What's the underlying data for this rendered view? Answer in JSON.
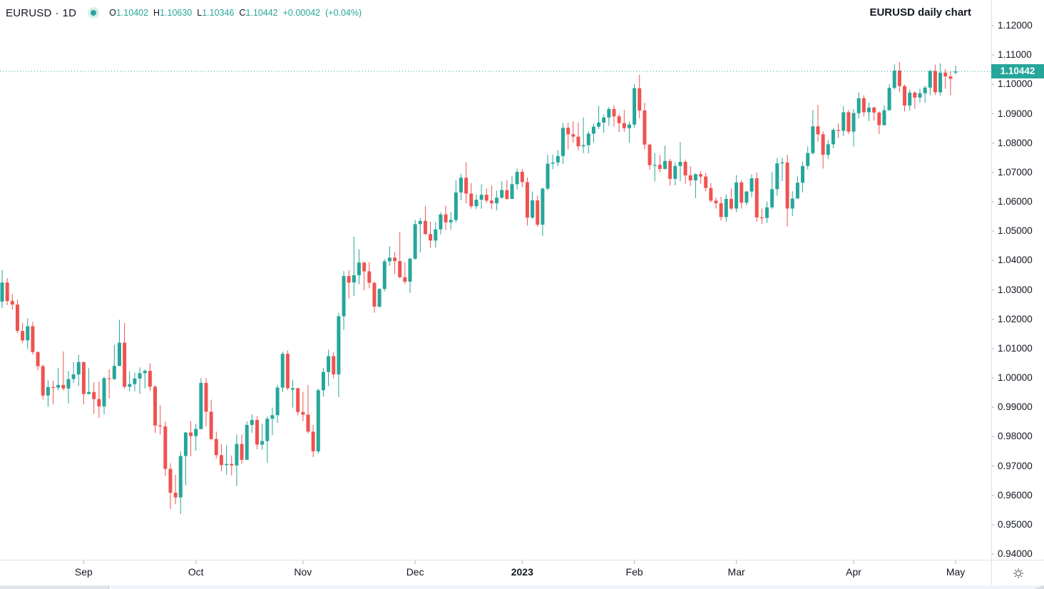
{
  "header": {
    "symbol": "EURUSD",
    "separator": "·",
    "interval": "1D",
    "ohlc": {
      "o_label": "O",
      "o": "1.10402",
      "h_label": "H",
      "h": "1.10630",
      "l_label": "L",
      "l": "1.10346",
      "c_label": "C",
      "c": "1.10442",
      "change": "+0.00042",
      "change_pct": "(+0.04%)"
    },
    "watermark_title": "EURUSD daily chart"
  },
  "colors": {
    "up": "#26a69a",
    "down": "#ef5350",
    "text": "#131722",
    "divider": "#e0e3eb",
    "tick": "#b2b5be",
    "badge_bg": "#26a69a",
    "badge_text": "#ffffff"
  },
  "price_axis": {
    "labels": [
      "1.12000",
      "1.11000",
      "1.10000",
      "1.09000",
      "1.08000",
      "1.07000",
      "1.06000",
      "1.05000",
      "1.04000",
      "1.03000",
      "1.02000",
      "1.01000",
      "1.00000",
      "0.99000",
      "0.98000",
      "0.97000",
      "0.96000",
      "0.95000",
      "0.94000"
    ],
    "last_price_label": "1.10442"
  },
  "time_axis": {
    "labels": [
      {
        "label": "Sep",
        "index": 16,
        "bold": false
      },
      {
        "label": "Oct",
        "index": 38,
        "bold": false
      },
      {
        "label": "Nov",
        "index": 59,
        "bold": false
      },
      {
        "label": "Dec",
        "index": 81,
        "bold": false
      },
      {
        "label": "2023",
        "index": 102,
        "bold": true
      },
      {
        "label": "Feb",
        "index": 124,
        "bold": false
      },
      {
        "label": "Mar",
        "index": 144,
        "bold": false
      },
      {
        "label": "Apr",
        "index": 167,
        "bold": false
      },
      {
        "label": "May",
        "index": 187,
        "bold": false
      }
    ]
  },
  "icons": {
    "settings": "gear-icon"
  },
  "chart_data": {
    "type": "candlestick",
    "title": "EURUSD daily chart",
    "symbol": "EURUSD",
    "interval": "1D",
    "legend_position": "top-left",
    "grid": false,
    "y_axis": {
      "min": 0.94,
      "max": 1.12,
      "step": 0.01,
      "side": "right"
    },
    "x_axis": {
      "labels_from": "time_axis.labels"
    },
    "last_price": 1.10442,
    "last_candle_ohlc": {
      "open": 1.10402,
      "high": 1.1063,
      "low": 1.10346,
      "close": 1.10442,
      "change": 0.00042,
      "change_pct": 0.04
    },
    "candles": [
      [
        1.026,
        1.0368,
        1.0238,
        1.0325
      ],
      [
        1.0325,
        1.034,
        1.0248,
        1.0262
      ],
      [
        1.0262,
        1.0286,
        1.0233,
        1.025
      ],
      [
        1.025,
        1.0268,
        1.0152,
        1.016
      ],
      [
        1.016,
        1.0188,
        1.012,
        1.0128
      ],
      [
        1.0128,
        1.0203,
        1.0098,
        1.0176
      ],
      [
        1.0176,
        1.0191,
        1.008,
        1.0088
      ],
      [
        1.0088,
        1.0091,
        1.0026,
        1.004
      ],
      [
        1.004,
        1.0046,
        0.9926,
        0.994
      ],
      [
        0.994,
        0.9992,
        0.9901,
        0.9969
      ],
      [
        0.9969,
        0.999,
        0.9911,
        0.9967
      ],
      [
        0.9967,
        1.0034,
        0.9958,
        0.9976
      ],
      [
        0.9976,
        1.009,
        0.9957,
        0.9964
      ],
      [
        0.9964,
        1.0024,
        0.9913,
        0.9996
      ],
      [
        0.9996,
        1.0054,
        0.9983,
        1.0012
      ],
      [
        1.0012,
        1.0079,
        0.9972,
        1.0054
      ],
      [
        1.0054,
        1.0055,
        0.991,
        0.9945
      ],
      [
        0.9945,
        1.0033,
        0.9944,
        0.9952
      ],
      [
        0.9952,
        0.9985,
        0.9878,
        0.9928
      ],
      [
        0.9928,
        0.9987,
        0.9864,
        0.9903
      ],
      [
        0.9903,
        1.0005,
        0.9876,
        0.9999
      ],
      [
        0.9999,
        1.0029,
        0.993,
        0.9996
      ],
      [
        0.9996,
        1.0113,
        0.9993,
        1.0041
      ],
      [
        1.0041,
        1.0198,
        1.004,
        1.012
      ],
      [
        1.012,
        1.0187,
        0.9964,
        0.997
      ],
      [
        0.997,
        1.0023,
        0.9955,
        0.9979
      ],
      [
        0.9979,
        1.0018,
        0.9954,
        0.9998
      ],
      [
        0.9998,
        1.0036,
        0.9945,
        1.0016
      ],
      [
        1.0016,
        1.0029,
        0.9964,
        1.0024
      ],
      [
        1.0024,
        1.005,
        0.9955,
        0.997
      ],
      [
        0.997,
        0.9975,
        0.9813,
        0.9838
      ],
      [
        0.9838,
        0.9907,
        0.9807,
        0.9835
      ],
      [
        0.9835,
        0.9851,
        0.9667,
        0.969
      ],
      [
        0.969,
        0.9709,
        0.9554,
        0.9609
      ],
      [
        0.9609,
        0.967,
        0.957,
        0.9593
      ],
      [
        0.9593,
        0.975,
        0.9536,
        0.9734
      ],
      [
        0.9734,
        0.9816,
        0.9634,
        0.9814
      ],
      [
        0.9814,
        0.9853,
        0.9733,
        0.9802
      ],
      [
        0.9802,
        0.9844,
        0.9752,
        0.9826
      ],
      [
        0.9826,
        0.9999,
        0.9825,
        0.9983
      ],
      [
        0.9983,
        1.0,
        0.9835,
        0.9885
      ],
      [
        0.9885,
        0.9926,
        0.9787,
        0.9792
      ],
      [
        0.9792,
        0.9817,
        0.9726,
        0.9737
      ],
      [
        0.9737,
        0.9774,
        0.9682,
        0.9703
      ],
      [
        0.9703,
        0.977,
        0.967,
        0.9707
      ],
      [
        0.9707,
        0.9736,
        0.9668,
        0.9702
      ],
      [
        0.9702,
        0.9807,
        0.9632,
        0.9775
      ],
      [
        0.9775,
        0.9807,
        0.9707,
        0.9721
      ],
      [
        0.9721,
        0.9852,
        0.9721,
        0.984
      ],
      [
        0.984,
        0.9875,
        0.9813,
        0.9857
      ],
      [
        0.9857,
        0.987,
        0.9757,
        0.9773
      ],
      [
        0.9773,
        0.9844,
        0.9755,
        0.9785
      ],
      [
        0.9785,
        0.9868,
        0.9711,
        0.9861
      ],
      [
        0.9861,
        0.9899,
        0.9805,
        0.9873
      ],
      [
        0.9873,
        0.9976,
        0.9847,
        0.9967
      ],
      [
        0.9967,
        1.0089,
        0.9951,
        1.0082
      ],
      [
        1.0082,
        1.0094,
        0.9958,
        0.9965
      ],
      [
        0.996,
        0.9994,
        0.9899,
        0.9965
      ],
      [
        0.9965,
        0.9967,
        0.9872,
        0.9884
      ],
      [
        0.9884,
        0.9953,
        0.9853,
        0.9875
      ],
      [
        0.9875,
        0.9976,
        0.981,
        0.9817
      ],
      [
        0.9817,
        0.984,
        0.973,
        0.975
      ],
      [
        0.975,
        0.9964,
        0.9742,
        0.9958
      ],
      [
        0.9958,
        1.0034,
        0.9936,
        1.002
      ],
      [
        1.002,
        1.0096,
        0.9972,
        1.0074
      ],
      [
        1.0074,
        1.0087,
        0.9998,
        1.0012
      ],
      [
        1.0012,
        1.0222,
        0.9935,
        1.021
      ],
      [
        1.021,
        1.0364,
        1.0163,
        1.0347
      ],
      [
        1.0347,
        1.0367,
        1.0271,
        1.0325
      ],
      [
        1.0325,
        1.0481,
        1.0279,
        1.035
      ],
      [
        1.035,
        1.0438,
        1.0319,
        1.0393
      ],
      [
        1.0393,
        1.0395,
        1.0298,
        1.0363
      ],
      [
        1.0363,
        1.0395,
        1.0305,
        1.0324
      ],
      [
        1.0324,
        1.0327,
        1.0222,
        1.0243
      ],
      [
        1.0243,
        1.0306,
        1.024,
        1.0303
      ],
      [
        1.0303,
        1.0405,
        1.0295,
        1.0397
      ],
      [
        1.0397,
        1.0448,
        1.0382,
        1.041
      ],
      [
        1.041,
        1.0429,
        1.0354,
        1.0398
      ],
      [
        1.0398,
        1.0497,
        1.034,
        1.0343
      ],
      [
        1.0343,
        1.0394,
        1.0319,
        1.0328
      ],
      [
        1.0328,
        1.041,
        1.029,
        1.0406
      ],
      [
        1.0406,
        1.0539,
        1.0402,
        1.0524
      ],
      [
        1.0524,
        1.0545,
        1.0427,
        1.0535
      ],
      [
        1.0535,
        1.0585,
        1.0487,
        1.049
      ],
      [
        1.049,
        1.0533,
        1.0443,
        1.0468
      ],
      [
        1.0468,
        1.0531,
        1.0444,
        1.0506
      ],
      [
        1.0506,
        1.0564,
        1.0489,
        1.0557
      ],
      [
        1.0557,
        1.0587,
        1.0503,
        1.053
      ],
      [
        1.053,
        1.0565,
        1.0505,
        1.0538
      ],
      [
        1.0538,
        1.0673,
        1.053,
        1.0632
      ],
      [
        1.0632,
        1.0695,
        1.0605,
        1.0682
      ],
      [
        1.0682,
        1.0735,
        1.0594,
        1.0628
      ],
      [
        1.0628,
        1.0664,
        1.0577,
        1.0585
      ],
      [
        1.0585,
        1.0625,
        1.0575,
        1.0607
      ],
      [
        1.0607,
        1.066,
        1.0576,
        1.0624
      ],
      [
        1.0624,
        1.0645,
        1.0596,
        1.0604
      ],
      [
        1.0604,
        1.0656,
        1.0575,
        1.0595
      ],
      [
        1.0595,
        1.0638,
        1.0571,
        1.0614
      ],
      [
        1.0614,
        1.067,
        1.0611,
        1.064
      ],
      [
        1.064,
        1.0673,
        1.0606,
        1.061
      ],
      [
        1.061,
        1.0688,
        1.0609,
        1.066
      ],
      [
        1.066,
        1.0713,
        1.0642,
        1.0702
      ],
      [
        1.0702,
        1.0712,
        1.065,
        1.0667
      ],
      [
        1.0667,
        1.0683,
        1.0519,
        1.0546
      ],
      [
        1.0546,
        1.0635,
        1.0542,
        1.0605
      ],
      [
        1.0605,
        1.0621,
        1.0515,
        1.0522
      ],
      [
        1.0522,
        1.0648,
        1.0483,
        1.0645
      ],
      [
        1.0645,
        1.076,
        1.0639,
        1.073
      ],
      [
        1.073,
        1.0761,
        1.0711,
        1.0734
      ],
      [
        1.0734,
        1.0776,
        1.0721,
        1.0756
      ],
      [
        1.0756,
        1.0868,
        1.0729,
        1.0852
      ],
      [
        1.0852,
        1.0869,
        1.0778,
        1.083
      ],
      [
        1.083,
        1.0874,
        1.0802,
        1.0822
      ],
      [
        1.0822,
        1.087,
        1.0775,
        1.0789
      ],
      [
        1.0789,
        1.0887,
        1.0766,
        1.0793
      ],
      [
        1.0793,
        1.084,
        1.0765,
        1.0832
      ],
      [
        1.0832,
        1.0867,
        1.0802,
        1.0856
      ],
      [
        1.0856,
        1.0927,
        1.0848,
        1.087
      ],
      [
        1.087,
        1.0898,
        1.0835,
        1.0887
      ],
      [
        1.0887,
        1.0923,
        1.0859,
        1.0916
      ],
      [
        1.0916,
        1.0929,
        1.0857,
        1.0891
      ],
      [
        1.0891,
        1.09,
        1.0837,
        1.0868
      ],
      [
        1.0868,
        1.0913,
        1.0838,
        1.0851
      ],
      [
        1.0851,
        1.0874,
        1.0801,
        1.0863
      ],
      [
        1.0863,
        1.1001,
        1.0852,
        1.0987
      ],
      [
        1.0987,
        1.1033,
        1.0885,
        1.0911
      ],
      [
        1.0911,
        1.0937,
        1.0779,
        1.0795
      ],
      [
        1.0795,
        1.0798,
        1.0709,
        1.0725
      ],
      [
        1.0725,
        1.0766,
        1.0669,
        1.0726
      ],
      [
        1.0726,
        1.0759,
        1.0701,
        1.0712
      ],
      [
        1.0712,
        1.0791,
        1.071,
        1.0739
      ],
      [
        1.0739,
        1.0746,
        1.0655,
        1.0678
      ],
      [
        1.0678,
        1.0735,
        1.0656,
        1.0722
      ],
      [
        1.0722,
        1.0804,
        1.067,
        1.0736
      ],
      [
        1.0736,
        1.0744,
        1.0661,
        1.069
      ],
      [
        1.069,
        1.0721,
        1.0654,
        1.0673
      ],
      [
        1.0673,
        1.0697,
        1.0613,
        1.0694
      ],
      [
        1.0694,
        1.0705,
        1.0661,
        1.0686
      ],
      [
        1.0686,
        1.0698,
        1.0636,
        1.0647
      ],
      [
        1.0647,
        1.0664,
        1.0598,
        1.0604
      ],
      [
        1.0604,
        1.0615,
        1.0577,
        1.0595
      ],
      [
        1.0595,
        1.0617,
        1.0536,
        1.0548
      ],
      [
        1.0548,
        1.0625,
        1.0532,
        1.061
      ],
      [
        1.061,
        1.0645,
        1.0572,
        1.0577
      ],
      [
        1.0577,
        1.0691,
        1.0565,
        1.0666
      ],
      [
        1.0666,
        1.0674,
        1.0577,
        1.0597
      ],
      [
        1.0597,
        1.0637,
        1.0588,
        1.0635
      ],
      [
        1.0635,
        1.0694,
        1.0616,
        1.068
      ],
      [
        1.068,
        1.07,
        1.0532,
        1.0547
      ],
      [
        1.0547,
        1.0577,
        1.0524,
        1.0545
      ],
      [
        1.0545,
        1.0601,
        1.0528,
        1.0581
      ],
      [
        1.0581,
        1.0701,
        1.0575,
        1.0643
      ],
      [
        1.0643,
        1.0749,
        1.0621,
        1.0731
      ],
      [
        1.0731,
        1.075,
        1.067,
        1.0734
      ],
      [
        1.0734,
        1.076,
        1.0516,
        1.0577
      ],
      [
        1.0577,
        1.0636,
        1.0551,
        1.0611
      ],
      [
        1.0611,
        1.0687,
        1.0611,
        1.0665
      ],
      [
        1.0665,
        1.0737,
        1.0632,
        1.0722
      ],
      [
        1.0722,
        1.0789,
        1.071,
        1.0766
      ],
      [
        1.0766,
        1.0912,
        1.076,
        1.0857
      ],
      [
        1.0857,
        1.093,
        1.0805,
        1.083
      ],
      [
        1.083,
        1.084,
        1.0713,
        1.076
      ],
      [
        1.076,
        1.081,
        1.0745,
        1.0796
      ],
      [
        1.0796,
        1.085,
        1.0782,
        1.0845
      ],
      [
        1.0845,
        1.0867,
        1.0817,
        1.0842
      ],
      [
        1.0842,
        1.0926,
        1.0824,
        1.0905
      ],
      [
        1.0905,
        1.0913,
        1.0831,
        1.0839
      ],
      [
        1.0839,
        1.0916,
        1.0788,
        1.0902
      ],
      [
        1.0902,
        1.0973,
        1.0884,
        1.0953
      ],
      [
        1.0953,
        1.0963,
        1.0891,
        1.0905
      ],
      [
        1.0905,
        1.0938,
        1.0875,
        1.0921
      ],
      [
        1.0921,
        1.0925,
        1.0876,
        1.0904
      ],
      [
        1.0904,
        1.0908,
        1.0831,
        1.0861
      ],
      [
        1.0861,
        1.0929,
        1.086,
        1.0912
      ],
      [
        1.0912,
        1.1,
        1.0912,
        1.0988
      ],
      [
        1.0988,
        1.1068,
        1.0982,
        1.1047
      ],
      [
        1.1047,
        1.1076,
        1.0973,
        1.0994
      ],
      [
        1.0994,
        1.0999,
        1.0908,
        1.0928
      ],
      [
        1.0928,
        1.0983,
        1.091,
        1.0972
      ],
      [
        1.0972,
        1.0976,
        1.0917,
        1.0955
      ],
      [
        1.0955,
        1.0985,
        1.0938,
        1.097
      ],
      [
        1.097,
        1.0995,
        1.0937,
        1.0989
      ],
      [
        1.0989,
        1.105,
        1.0963,
        1.1046
      ],
      [
        1.1046,
        1.1067,
        1.0964,
        1.0973
      ],
      [
        1.0973,
        1.1072,
        1.0962,
        1.104
      ],
      [
        1.104,
        1.1053,
        1.0985,
        1.1027
      ],
      [
        1.1027,
        1.1046,
        1.0963,
        1.1019
      ],
      [
        1.10402,
        1.1063,
        1.10346,
        1.10442
      ]
    ]
  }
}
